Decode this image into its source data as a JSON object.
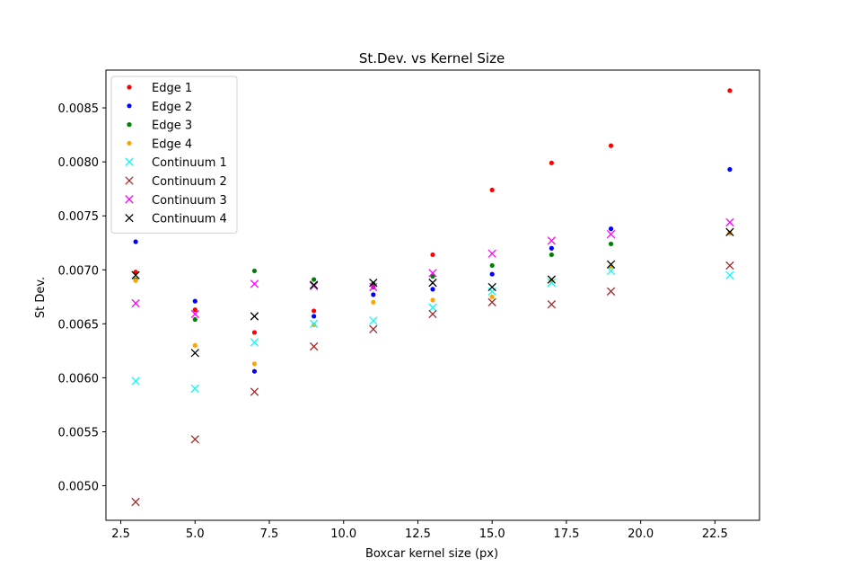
{
  "chart_data": {
    "type": "scatter",
    "title": "St.Dev. vs Kernel Size",
    "xlabel": "Boxcar kernel size (px)",
    "ylabel": "St Dev.",
    "xlim": [
      2.0,
      24.0
    ],
    "ylim": [
      0.00468,
      0.00885
    ],
    "xticks": [
      2.5,
      5.0,
      7.5,
      10.0,
      12.5,
      15.0,
      17.5,
      20.0,
      22.5
    ],
    "xtick_labels": [
      "2.5",
      "5.0",
      "7.5",
      "10.0",
      "12.5",
      "15.0",
      "17.5",
      "20.0",
      "22.5"
    ],
    "yticks": [
      0.005,
      0.0055,
      0.006,
      0.0065,
      0.007,
      0.0075,
      0.008,
      0.0085
    ],
    "ytick_labels": [
      "0.0050",
      "0.0055",
      "0.0060",
      "0.0065",
      "0.0070",
      "0.0075",
      "0.0080",
      "0.0085"
    ],
    "grid": false,
    "legend_position": "top-left",
    "x": [
      3,
      5,
      7,
      9,
      11,
      13,
      15,
      17,
      19,
      23
    ],
    "series": [
      {
        "name": "Edge 1",
        "marker": "dot",
        "color": "#ff0000",
        "values": [
          0.00698,
          0.00663,
          0.00642,
          0.00662,
          0.00684,
          0.00714,
          0.00774,
          0.00799,
          0.00815,
          0.00866
        ]
      },
      {
        "name": "Edge 2",
        "marker": "dot",
        "color": "#0000ff",
        "values": [
          0.00726,
          0.00671,
          0.00606,
          0.00657,
          0.00677,
          0.00682,
          0.00696,
          0.0072,
          0.00738,
          0.00793
        ]
      },
      {
        "name": "Edge 3",
        "marker": "dot",
        "color": "#008000",
        "values": [
          0.00691,
          0.00654,
          0.00699,
          0.00691,
          0.00687,
          0.00694,
          0.00704,
          0.00714,
          0.00724,
          0.00734
        ]
      },
      {
        "name": "Edge 4",
        "marker": "dot",
        "color": "#ffa500",
        "values": [
          0.0069,
          0.0063,
          0.00613,
          0.00649,
          0.0067,
          0.00672,
          0.00675,
          0.0069,
          0.00703,
          0.00734
        ]
      },
      {
        "name": "Continuum 1",
        "marker": "x",
        "color": "#00ffff",
        "values": [
          0.00597,
          0.0059,
          0.00633,
          0.0065,
          0.00653,
          0.00665,
          0.0068,
          0.00688,
          0.00699,
          0.00695
        ]
      },
      {
        "name": "Continuum 2",
        "marker": "x",
        "color": "#a52a2a",
        "values": [
          0.00485,
          0.00543,
          0.00587,
          0.00629,
          0.00645,
          0.00659,
          0.0067,
          0.00668,
          0.0068,
          0.00704
        ]
      },
      {
        "name": "Continuum 3",
        "marker": "x",
        "color": "#ff00ff",
        "values": [
          0.00669,
          0.00659,
          0.00687,
          0.00685,
          0.00684,
          0.00697,
          0.00715,
          0.00727,
          0.00733,
          0.00744
        ]
      },
      {
        "name": "Continuum 4",
        "marker": "x",
        "color": "#000000",
        "values": [
          0.00695,
          0.00623,
          0.00657,
          0.00686,
          0.00688,
          0.00688,
          0.00684,
          0.00691,
          0.00705,
          0.00735
        ]
      }
    ]
  }
}
